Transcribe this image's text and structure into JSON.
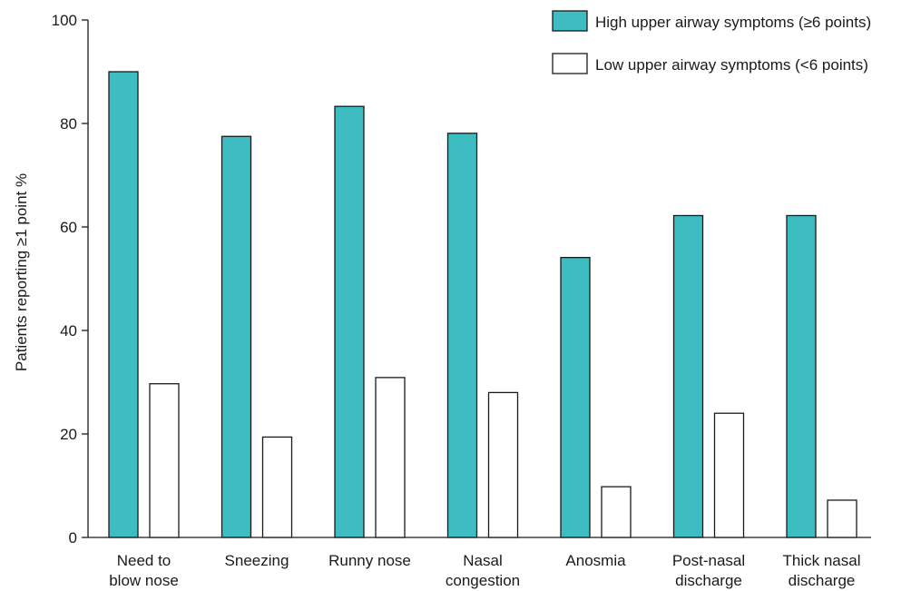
{
  "chart_data": {
    "type": "bar",
    "title": "",
    "xlabel": "",
    "ylabel": "Patients reporting ≥1 point %",
    "ylim": [
      0,
      100
    ],
    "yticks": [
      0,
      20,
      40,
      60,
      80,
      100
    ],
    "grid": false,
    "legend_position": "top-right",
    "categories": [
      [
        "Need to",
        "blow nose"
      ],
      [
        "Sneezing"
      ],
      [
        "Runny nose"
      ],
      [
        "Nasal",
        "congestion"
      ],
      [
        "Anosmia"
      ],
      [
        "Post-nasal",
        "discharge"
      ],
      [
        "Thick nasal",
        "discharge"
      ]
    ],
    "series": [
      {
        "name": "High upper airway symptoms (≥6 points)",
        "color": "#3dbcc1",
        "values": [
          90,
          77.5,
          83.3,
          78.1,
          54.1,
          62.2,
          62.2
        ]
      },
      {
        "name": "Low upper airway symptoms (<6 points)",
        "color": "#ffffff",
        "values": [
          29.7,
          19.4,
          30.9,
          28,
          9.8,
          24,
          7.2
        ]
      }
    ]
  }
}
